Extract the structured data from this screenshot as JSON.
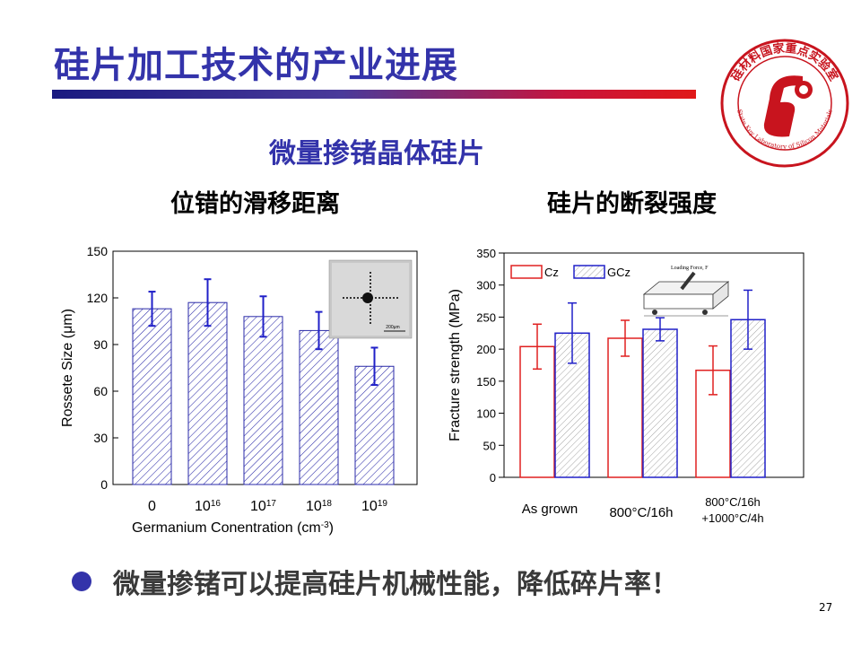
{
  "slide": {
    "title": "硅片加工技术的产业进展",
    "subtitle": "微量掺锗晶体硅片",
    "left_heading": "位错的滑移距离",
    "right_heading": "硅片的断裂强度",
    "bullet_text": "微量掺锗可以提高硅片机械性能，降低碎片率！",
    "page_number": "27"
  },
  "logo": {
    "top_text": "硅材料国家重点实验室",
    "ring_text": "State Key Laboratory of Silicon Materials"
  },
  "colors": {
    "title": "#3333aa",
    "bar_left": "#2a2aa8",
    "cz": "#e02020",
    "gcz": "#2020c8",
    "logo_red": "#c8141e"
  },
  "chart_data": [
    {
      "type": "bar",
      "title": "",
      "xlabel": "Germanium Conentration (cm-3)",
      "ylabel": "Rossete Size (μm)",
      "ylim": [
        0,
        150
      ],
      "yticks": [
        "0",
        "30",
        "60",
        "90",
        "120",
        "150"
      ],
      "categories": [
        {
          "base": "0",
          "exp": ""
        },
        {
          "base": "10",
          "exp": "16"
        },
        {
          "base": "10",
          "exp": "17"
        },
        {
          "base": "10",
          "exp": "18"
        },
        {
          "base": "10",
          "exp": "19"
        }
      ],
      "values": [
        113,
        117,
        108,
        99,
        76
      ],
      "errors": [
        11,
        15,
        13,
        12,
        12
      ],
      "inset_scale_label": "200μm",
      "grid": false,
      "legend": "none"
    },
    {
      "type": "bar",
      "title": "",
      "xlabel": "",
      "ylabel": "Fracture strength (MPa)",
      "ylim": [
        0,
        350
      ],
      "yticks": [
        "0",
        "50",
        "100",
        "150",
        "200",
        "250",
        "300",
        "350"
      ],
      "categories": [
        "As grown",
        "800°C/16h",
        "800°C/16h +1000°C/4h"
      ],
      "series": [
        {
          "name": "Cz",
          "values": [
            204,
            217,
            167
          ],
          "errors": [
            35,
            28,
            38
          ]
        },
        {
          "name": "GCz",
          "values": [
            225,
            231,
            246
          ],
          "errors": [
            47,
            18,
            46
          ]
        }
      ],
      "inset_label": "Loading Force, F",
      "grid": false,
      "legend": "top-left"
    }
  ]
}
